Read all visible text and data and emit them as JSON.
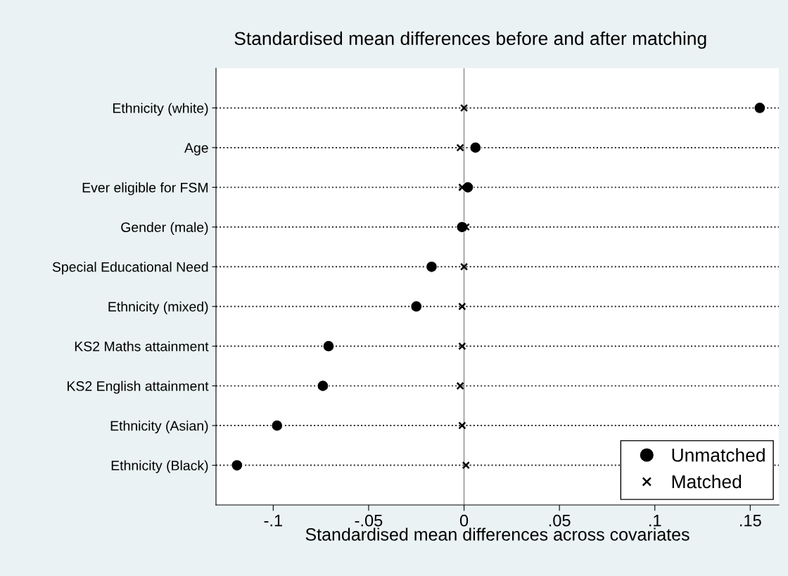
{
  "chart_data": {
    "type": "scatter",
    "title": "Standardised mean differences before and after matching",
    "xlabel": "Standardised mean differences across covariates",
    "categories": [
      "Ethnicity (white)",
      "Age",
      "Ever eligible for FSM",
      "Gender (male)",
      "Special Educational Need",
      "Ethnicity (mixed)",
      "KS2 Maths attainment",
      "KS2 English attainment",
      "Ethnicity (Asian)",
      "Ethnicity (Black)"
    ],
    "orientation": "horizontal",
    "series": [
      {
        "name": "Unmatched",
        "color": "#000000",
        "marker": "circle",
        "values": [
          0.155,
          0.006,
          0.002,
          -0.001,
          -0.017,
          -0.025,
          -0.071,
          -0.074,
          -0.098,
          -0.119
        ]
      },
      {
        "name": "Matched",
        "color": "#000000",
        "marker": "cross",
        "values": [
          0.0,
          -0.002,
          -0.001,
          0.001,
          0.0,
          -0.001,
          -0.001,
          -0.002,
          -0.001,
          0.001
        ]
      }
    ],
    "xlim": [
      -0.13,
      0.165
    ],
    "xticks": [
      {
        "value": -0.1,
        "label": "-.1"
      },
      {
        "value": -0.05,
        "label": "-.05"
      },
      0,
      {
        "value": 0.05,
        "label": ".05"
      },
      {
        "value": 0.1,
        "label": ".1"
      },
      {
        "value": 0.15,
        "label": ".15"
      }
    ],
    "ref_lines": [
      {
        "axis": "x",
        "value": 0,
        "color": "#999999"
      }
    ],
    "grid": "y",
    "line_style": "dotted",
    "legend": "bottom right"
  }
}
